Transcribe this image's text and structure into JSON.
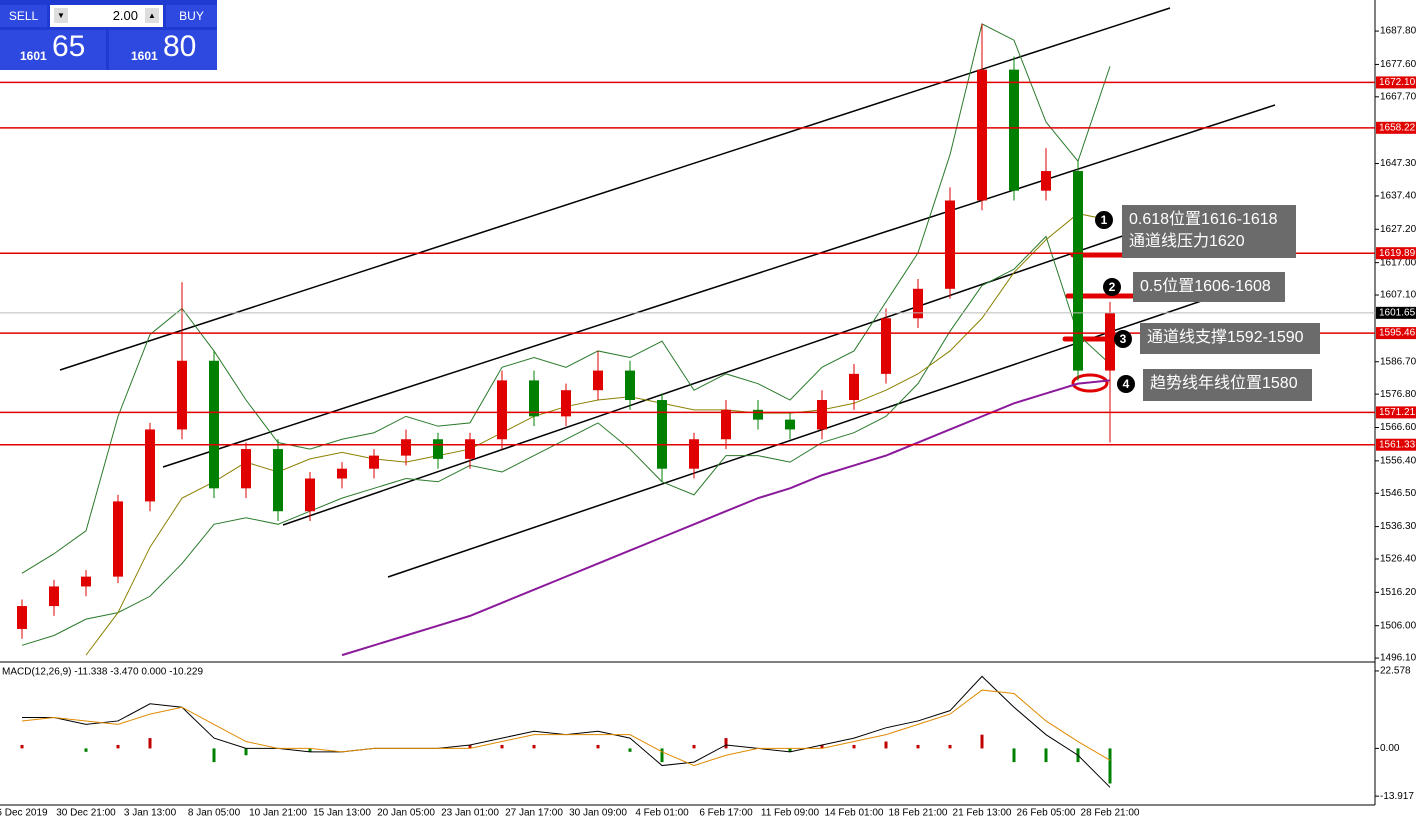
{
  "trade_panel": {
    "sell": "SELL",
    "buy": "BUY",
    "lot": "2.00",
    "sell_prefix": "1601",
    "sell_main": "65",
    "buy_prefix": "1601",
    "buy_main": "80"
  },
  "chart_data": [
    {
      "type": "candlestick",
      "categories": [
        "6 Dec 2019",
        null,
        "30 Dec 21:00",
        null,
        "3 Jan 13:00",
        null,
        "8 Jan 05:00",
        null,
        "10 Jan 21:00",
        null,
        "15 Jan 13:00",
        null,
        "20 Jan 05:00",
        null,
        "23 Jan 01:00",
        null,
        "27 Jan 17:00",
        null,
        "30 Jan 09:00",
        null,
        "4 Feb 01:00",
        null,
        "6 Feb 17:00",
        null,
        "11 Feb 09:00",
        null,
        "14 Feb 01:00",
        null,
        "18 Feb 21:00",
        null,
        "21 Feb 13:00",
        null,
        "26 Feb 05:00",
        null,
        "28 Feb 21:00"
      ],
      "open": [
        1505,
        1512,
        1518,
        1521,
        1544,
        1566,
        1587,
        1548,
        1560,
        1541,
        1551,
        1554,
        1558,
        1563,
        1557,
        1563,
        1581,
        1570,
        1578,
        1584,
        1575,
        1554,
        1563,
        1572,
        1569,
        1566,
        1575,
        1583,
        1600,
        1609,
        1636,
        1676,
        1639,
        1645,
        1584
      ],
      "high": [
        1514,
        1520,
        1523,
        1546,
        1568,
        1611,
        1590,
        1562,
        1563,
        1553,
        1556,
        1560,
        1566,
        1565,
        1565,
        1584,
        1584,
        1580,
        1590,
        1587,
        1577,
        1565,
        1575,
        1575,
        1571,
        1578,
        1586,
        1603,
        1612,
        1640,
        1690,
        1680,
        1652,
        1648,
        1605
      ],
      "low": [
        1502,
        1509,
        1515,
        1519,
        1541,
        1563,
        1545,
        1545,
        1538,
        1538,
        1548,
        1551,
        1555,
        1554,
        1554,
        1560,
        1567,
        1567,
        1575,
        1572,
        1550,
        1551,
        1560,
        1566,
        1563,
        1563,
        1572,
        1580,
        1597,
        1606,
        1633,
        1636,
        1636,
        1581,
        1562
      ],
      "close": [
        1512,
        1518,
        1521,
        1544,
        1566,
        1587,
        1548,
        1560,
        1541,
        1551,
        1554,
        1558,
        1563,
        1557,
        1563,
        1581,
        1570,
        1578,
        1584,
        1575,
        1554,
        1563,
        1572,
        1569,
        1566,
        1575,
        1583,
        1600,
        1609,
        1636,
        1676,
        1639,
        1645,
        1584,
        1601.65
      ],
      "ylim": [
        1494.9,
        1697.3
      ],
      "yticks": [
        {
          "value": 1687.8,
          "label": "1687.80"
        },
        {
          "value": 1677.6,
          "label": "1677.60"
        },
        {
          "value": 1667.7,
          "label": "1667.70"
        },
        {
          "value": 1647.3,
          "label": "1647.30"
        },
        {
          "value": 1637.4,
          "label": "1637.40"
        },
        {
          "value": 1627.2,
          "label": "1627.20"
        },
        {
          "value": 1617,
          "label": "1617.00"
        },
        {
          "value": 1607.1,
          "label": "1607.10"
        },
        {
          "value": 1586.7,
          "label": "1586.70"
        },
        {
          "value": 1576.8,
          "label": "1576.80"
        },
        {
          "value": 1566.6,
          "label": "1566.60"
        },
        {
          "value": 1556.4,
          "label": "1556.40"
        },
        {
          "value": 1546.5,
          "label": "1546.50"
        },
        {
          "value": 1536.3,
          "label": "1536.30"
        },
        {
          "value": 1526.4,
          "label": "1526.40"
        },
        {
          "value": 1516.2,
          "label": "1516.20"
        },
        {
          "value": 1506,
          "label": "1506.00"
        },
        {
          "value": 1496.1,
          "label": "1496.10"
        }
      ],
      "levels": [
        {
          "value": 1672.1,
          "label": "1672.10"
        },
        {
          "value": 1658.22,
          "label": "1658.22"
        },
        {
          "value": 1619.89,
          "label": "1619.89"
        },
        {
          "value": 1595.46,
          "label": "1595.46"
        },
        {
          "value": 1571.21,
          "label": "1571.21"
        },
        {
          "value": 1561.33,
          "label": "1561.33"
        }
      ],
      "level_color": "#e00000",
      "current_price": {
        "value": 1601.65,
        "label": "1601.65"
      },
      "up_color": "#e00000",
      "down_color": "#008000",
      "series": [
        {
          "color": "#2a7a2a",
          "values": [
            1522,
            1528,
            1535,
            1570,
            1595,
            1603,
            1590,
            1575,
            1562,
            1560,
            1563,
            1565,
            1570,
            1567,
            1568,
            1585,
            1588,
            1585,
            1590,
            1588,
            1593,
            1578,
            1583,
            1580,
            1575,
            1585,
            1590,
            1605,
            1620,
            1650,
            1690,
            1685,
            1660,
            1648,
            1677
          ]
        },
        {
          "color": "#2a7a2a",
          "values": [
            1500,
            1503,
            1508,
            1510,
            1515,
            1525,
            1537,
            1539,
            1537,
            1541,
            1545,
            1548,
            1551,
            1550,
            1555,
            1553,
            1558,
            1563,
            1568,
            1560,
            1550,
            1546,
            1558,
            1558,
            1556,
            1562,
            1565,
            1570,
            1580,
            1596,
            1610,
            1615,
            1625,
            1595,
            1586
          ]
        },
        {
          "color": "#8b8000",
          "values": [
            null,
            null,
            1497,
            1510,
            1530,
            1545,
            1550,
            1556,
            1553,
            1557,
            1559,
            1557,
            1556,
            1558,
            1560,
            1565,
            1570,
            1573,
            1575,
            1576,
            1574,
            1572,
            1572,
            1571,
            1571,
            1572,
            1574,
            1578,
            1583,
            1590,
            1600,
            1614,
            1624,
            1632,
            1630
          ]
        },
        {
          "color": "#8b1a9b",
          "values": [
            null,
            null,
            null,
            null,
            null,
            null,
            null,
            null,
            null,
            null,
            1497,
            1500,
            1503,
            1506,
            1509,
            1513,
            1517,
            1521,
            1525,
            1529,
            1533,
            1537,
            1541,
            1545,
            1548,
            1552,
            1555,
            1558,
            1562,
            1566,
            1570,
            1574,
            1577,
            1580,
            1581
          ]
        }
      ],
      "annotations": [
        {
          "number": "1",
          "text": [
            "0.618位置1616-1618",
            "通道线压力1620"
          ]
        },
        {
          "number": "2",
          "text": [
            "0.5位置1606-1608"
          ]
        },
        {
          "number": "3",
          "text": [
            "通道线支撑1592-1590"
          ]
        },
        {
          "number": "4",
          "text": [
            "趋势线年线位置1580"
          ]
        }
      ]
    },
    {
      "type": "macd",
      "title": "MACD(12,26,9) -11.338 -3.470 0.000 -10.229",
      "macd": [
        9,
        9,
        7,
        8,
        13,
        12,
        3,
        0,
        0,
        -1,
        -1,
        0,
        0,
        0,
        1,
        3,
        5,
        4,
        5,
        3,
        -5,
        -4,
        1,
        0,
        -1,
        1,
        3,
        6,
        8,
        11,
        21,
        12,
        4,
        -2,
        -11.338
      ],
      "signal": [
        8,
        9,
        8,
        7,
        10,
        12,
        7,
        2,
        0,
        0,
        -1,
        0,
        0,
        0,
        0,
        2,
        4,
        4,
        4,
        4,
        -1,
        -5,
        -2,
        0,
        0,
        0,
        2,
        4,
        7,
        10,
        17,
        16,
        8,
        2,
        -3.47
      ],
      "histogram": [
        1,
        0,
        -1,
        1,
        3,
        0,
        -4,
        -2,
        0,
        -1,
        0,
        0,
        0,
        0,
        1,
        1,
        1,
        0,
        1,
        -1,
        -4,
        1,
        3,
        0,
        -1,
        1,
        1,
        2,
        1,
        1,
        4,
        -4,
        -4,
        -4,
        -10.229
      ],
      "macd_color": "#000000",
      "signal_color": "#e08a00",
      "up_color": "#c00000",
      "down_color": "#008000",
      "ylim": [
        -16.5,
        24.6
      ],
      "yticks": [
        22.578,
        {
          "value": 0,
          "label": "0.00"
        },
        -13.917
      ]
    }
  ]
}
